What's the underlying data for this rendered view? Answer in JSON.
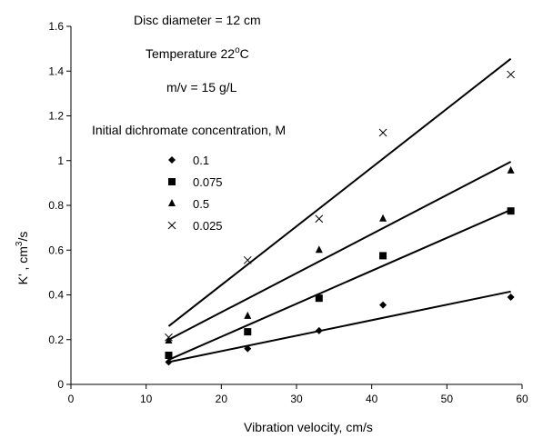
{
  "chart_data": {
    "type": "scatter",
    "title": "",
    "xlabel": "Vibration velocity,  cm/s",
    "ylabel_main": "K' ,  cm",
    "ylabel_sup": "3",
    "ylabel_tail": "/s",
    "xlim": [
      0,
      60
    ],
    "ylim": [
      0,
      1.6
    ],
    "x_ticks": [
      "0",
      "10",
      "20",
      "30",
      "40",
      "50",
      "60"
    ],
    "y_ticks": [
      "0",
      "0.2",
      "0.4",
      "0.6",
      "0.8",
      "1",
      "1.2",
      "1.4",
      "1.6"
    ],
    "grid": false,
    "legend_title": "Initial dichromate concentration,  M",
    "legend_position": "upper-left",
    "annotations": {
      "disc": "Disc diameter = 12 cm",
      "temp_main": "Temperature 22",
      "temp_sup": "o",
      "temp_tail": "C",
      "mv": "m/v = 15 g/L"
    },
    "series": [
      {
        "name": "0.1",
        "marker": "diamond",
        "x": [
          13,
          23.5,
          33,
          41.5,
          58.5
        ],
        "y": [
          0.1,
          0.16,
          0.24,
          0.355,
          0.39
        ],
        "fit": [
          [
            13,
            0.1
          ],
          [
            58.5,
            0.415
          ]
        ]
      },
      {
        "name": "0.075",
        "marker": "square",
        "x": [
          13,
          23.5,
          33,
          41.5,
          58.5
        ],
        "y": [
          0.13,
          0.235,
          0.385,
          0.575,
          0.775
        ],
        "fit": [
          [
            13,
            0.11
          ],
          [
            58.5,
            0.78
          ]
        ]
      },
      {
        "name": "0.5",
        "marker": "triangle",
        "x": [
          13,
          23.5,
          33,
          41.5,
          58.5
        ],
        "y": [
          0.195,
          0.305,
          0.6,
          0.74,
          0.955
        ],
        "fit": [
          [
            13,
            0.2
          ],
          [
            58.5,
            0.995
          ]
        ]
      },
      {
        "name": "0.025",
        "marker": "x",
        "x": [
          13,
          23.5,
          33,
          41.5,
          58.5
        ],
        "y": [
          0.21,
          0.555,
          0.74,
          1.125,
          1.385
        ],
        "fit": [
          [
            13,
            0.26
          ],
          [
            58.5,
            1.455
          ]
        ]
      }
    ]
  }
}
